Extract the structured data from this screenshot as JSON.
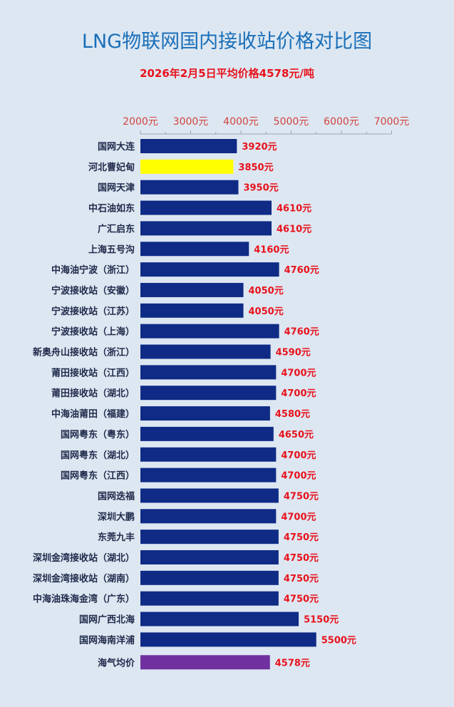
{
  "title": "LNG物联网国内接收站价格对比图",
  "subtitle": "2026年2月5日平均价格4578元/吨",
  "colors": {
    "background": "#dde7f2",
    "bar": "#0f2b86",
    "highlight": "#ffff00",
    "average": "#7030a0",
    "title": "#1a6fb8",
    "value_label": "#e8121b",
    "tick_label": "#d0433c",
    "category_label": "#1e2a4a"
  },
  "chart_data": {
    "type": "bar",
    "orientation": "horizontal",
    "xlim": [
      2000,
      7000
    ],
    "ticks": [
      2000,
      3000,
      4000,
      5000,
      6000,
      7000
    ],
    "tick_labels": [
      "2000元",
      "3000元",
      "4000元",
      "5000元",
      "6000元",
      "7000元"
    ],
    "axis_position": "top",
    "grid": false,
    "categories": [
      "国网大连",
      "河北曹妃甸",
      "国网天津",
      "中石油如东",
      "广汇启东",
      "上海五号沟",
      "中海油宁波（浙江）",
      "宁波接收站（安徽）",
      "宁波接收站（江苏）",
      "宁波接收站（上海）",
      "新奥舟山接收站（浙江）",
      "莆田接收站（江西）",
      "莆田接收站（湖北）",
      "中海油莆田（福建）",
      "国网粤东（粤东）",
      "国网粤东（湖北）",
      "国网粤东（江西）",
      "国网迭福",
      "深圳大鹏",
      "东莞九丰",
      "深圳金湾接收站（湖北）",
      "深圳金湾接收站（湖南）",
      "中海油珠海金湾（广东）",
      "国网广西北海",
      "国网海南洋浦",
      "海气均价"
    ],
    "values": [
      3920,
      3850,
      3950,
      4610,
      4610,
      4160,
      4760,
      4050,
      4050,
      4760,
      4590,
      4700,
      4700,
      4580,
      4650,
      4700,
      4700,
      4750,
      4700,
      4750,
      4750,
      4750,
      4750,
      5150,
      5500,
      4578
    ],
    "value_labels": [
      "3920元",
      "3850元",
      "3950元",
      "4610元",
      "4610元",
      "4160元",
      "4760元",
      "4050元",
      "4050元",
      "4760元",
      "4590元",
      "4700元",
      "4700元",
      "4580元",
      "4650元",
      "4700元",
      "4700元",
      "4750元",
      "4700元",
      "4750元",
      "4750元",
      "4750元",
      "4750元",
      "5150元",
      "5500元",
      "4578元"
    ],
    "highlight_indices": [
      1
    ],
    "average_index": 25
  }
}
